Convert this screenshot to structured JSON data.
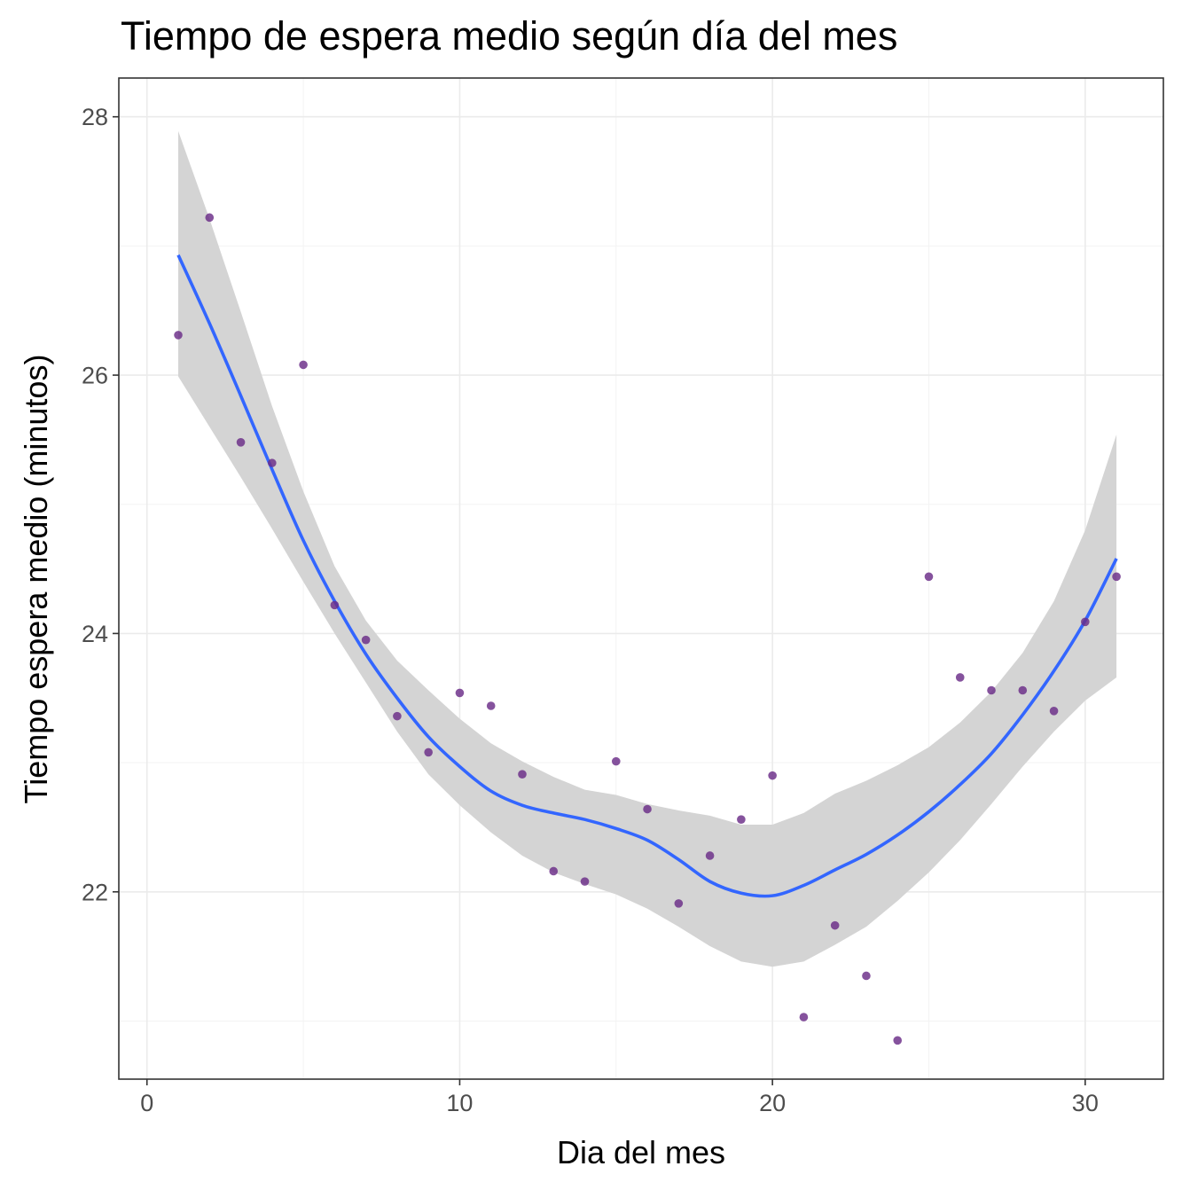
{
  "chart_data": {
    "type": "scatter",
    "title": "Tiempo de espera medio según día del mes",
    "xlabel": "Dia del mes",
    "ylabel": "Tiempo espera medio (minutos)",
    "xlim": [
      -0.9,
      32.5
    ],
    "ylim": [
      20.55,
      28.3
    ],
    "x_ticks": [
      0,
      10,
      20,
      30
    ],
    "y_ticks": [
      22,
      24,
      26,
      28
    ],
    "x_tick_labels": [
      "0",
      "10",
      "20",
      "30"
    ],
    "y_tick_labels": [
      "22",
      "24",
      "26",
      "28"
    ],
    "grid": true,
    "colors": {
      "points": "#6a2c87",
      "smooth_line": "#3366ff",
      "confidence_band": "#d4d4d4"
    },
    "points": {
      "x": [
        1,
        2,
        3,
        4,
        5,
        6,
        7,
        8,
        9,
        10,
        11,
        12,
        13,
        14,
        15,
        16,
        17,
        18,
        19,
        20,
        21,
        22,
        23,
        24,
        25,
        26,
        27,
        28,
        29,
        30,
        31
      ],
      "y": [
        26.31,
        27.22,
        25.48,
        25.32,
        26.08,
        24.22,
        23.95,
        23.36,
        23.08,
        23.54,
        23.44,
        22.91,
        22.16,
        22.08,
        23.01,
        22.64,
        21.91,
        22.28,
        22.56,
        22.9,
        21.03,
        21.74,
        21.35,
        20.85,
        24.44,
        23.66,
        23.56,
        23.56,
        23.4,
        24.09,
        24.44
      ]
    },
    "smooth": {
      "x": [
        1,
        2,
        3,
        4,
        5,
        6,
        7,
        8,
        9,
        10,
        11,
        12,
        13,
        14,
        15,
        16,
        17,
        18,
        19,
        20,
        21,
        22,
        23,
        24,
        25,
        26,
        27,
        28,
        29,
        30,
        31
      ],
      "y": [
        26.93,
        26.4,
        25.84,
        25.27,
        24.72,
        24.25,
        23.84,
        23.5,
        23.2,
        22.97,
        22.78,
        22.67,
        22.61,
        22.56,
        22.49,
        22.4,
        22.25,
        22.08,
        21.99,
        21.97,
        22.05,
        22.17,
        22.29,
        22.44,
        22.62,
        22.83,
        23.07,
        23.37,
        23.71,
        24.1,
        24.58
      ],
      "lower": [
        25.99,
        25.6,
        25.21,
        24.81,
        24.4,
        24.0,
        23.62,
        23.24,
        22.91,
        22.67,
        22.46,
        22.28,
        22.15,
        22.06,
        21.98,
        21.87,
        21.73,
        21.58,
        21.46,
        21.42,
        21.46,
        21.59,
        21.73,
        21.93,
        22.15,
        22.4,
        22.68,
        22.97,
        23.24,
        23.48,
        23.66
      ],
      "upper": [
        27.89,
        27.21,
        26.49,
        25.76,
        25.1,
        24.52,
        24.1,
        23.79,
        23.56,
        23.34,
        23.15,
        23.01,
        22.89,
        22.79,
        22.75,
        22.68,
        22.63,
        22.59,
        22.52,
        22.52,
        22.61,
        22.76,
        22.86,
        22.98,
        23.12,
        23.31,
        23.55,
        23.85,
        24.25,
        24.8,
        25.54
      ]
    }
  }
}
